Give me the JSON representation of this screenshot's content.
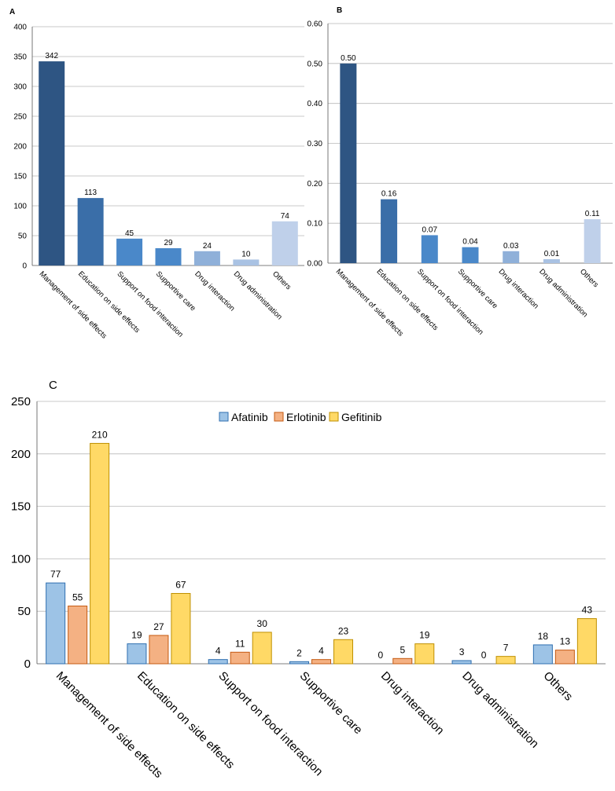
{
  "chart_data": [
    {
      "panel_label": "A",
      "type": "bar",
      "categories": [
        "Management of side effects",
        "Education on side effects",
        "Support on food interaction",
        "Supportive care",
        "Drug interaction",
        "Drug administration",
        "Others"
      ],
      "values": [
        342,
        113,
        45,
        29,
        24,
        10,
        74
      ],
      "value_labels": [
        "342",
        "113",
        "45",
        "29",
        "24",
        "10",
        "74"
      ],
      "yticks": [
        "0",
        "50",
        "100",
        "150",
        "200",
        "250",
        "300",
        "350",
        "400"
      ],
      "ylim": [
        0,
        400
      ],
      "grid": true,
      "bar_colors": [
        "#2e5583",
        "#3a6ea8",
        "#4a88c9",
        "#4a88c9",
        "#8fb0d9",
        "#a9c2e3",
        "#bfd0ea"
      ]
    },
    {
      "panel_label": "B",
      "type": "bar",
      "categories": [
        "Management of side effects",
        "Education on side effects",
        "Support on food interaction",
        "Supportive care",
        "Drug interaction",
        "Drug administration",
        "Others"
      ],
      "values": [
        0.5,
        0.16,
        0.07,
        0.04,
        0.03,
        0.01,
        0.11
      ],
      "value_labels": [
        "0.50",
        "0.16",
        "0.07",
        "0.04",
        "0.03",
        "0.01",
        "0.11"
      ],
      "yticks": [
        "0.00",
        "0.10",
        "0.20",
        "0.30",
        "0.40",
        "0.50",
        "0.60"
      ],
      "ylim": [
        0,
        0.6
      ],
      "grid": true,
      "bar_colors": [
        "#2e5583",
        "#3a6ea8",
        "#4a88c9",
        "#4a88c9",
        "#8fb0d9",
        "#a9c2e3",
        "#bfd0ea"
      ]
    },
    {
      "panel_label": "C",
      "type": "bar",
      "categories": [
        "Management of side effects",
        "Education on side effects",
        "Support on food interaction",
        "Supportive care",
        "Drug interaction",
        "Drug administration",
        "Others"
      ],
      "series": [
        {
          "name": "Afatinib",
          "values": [
            77,
            19,
            4,
            2,
            0,
            3,
            18
          ],
          "fill": "#9dc3e6",
          "stroke": "#2f6fb0"
        },
        {
          "name": "Erlotinib",
          "values": [
            55,
            27,
            11,
            4,
            5,
            0,
            13
          ],
          "fill": "#f4b183",
          "stroke": "#c55a11"
        },
        {
          "name": "Gefitinib",
          "values": [
            210,
            67,
            30,
            23,
            19,
            7,
            43
          ],
          "fill": "#ffd966",
          "stroke": "#bf9000"
        }
      ],
      "yticks": [
        "0",
        "50",
        "100",
        "150",
        "200",
        "250"
      ],
      "ylim": [
        0,
        250
      ],
      "grid": true,
      "legend": "top-center"
    }
  ]
}
